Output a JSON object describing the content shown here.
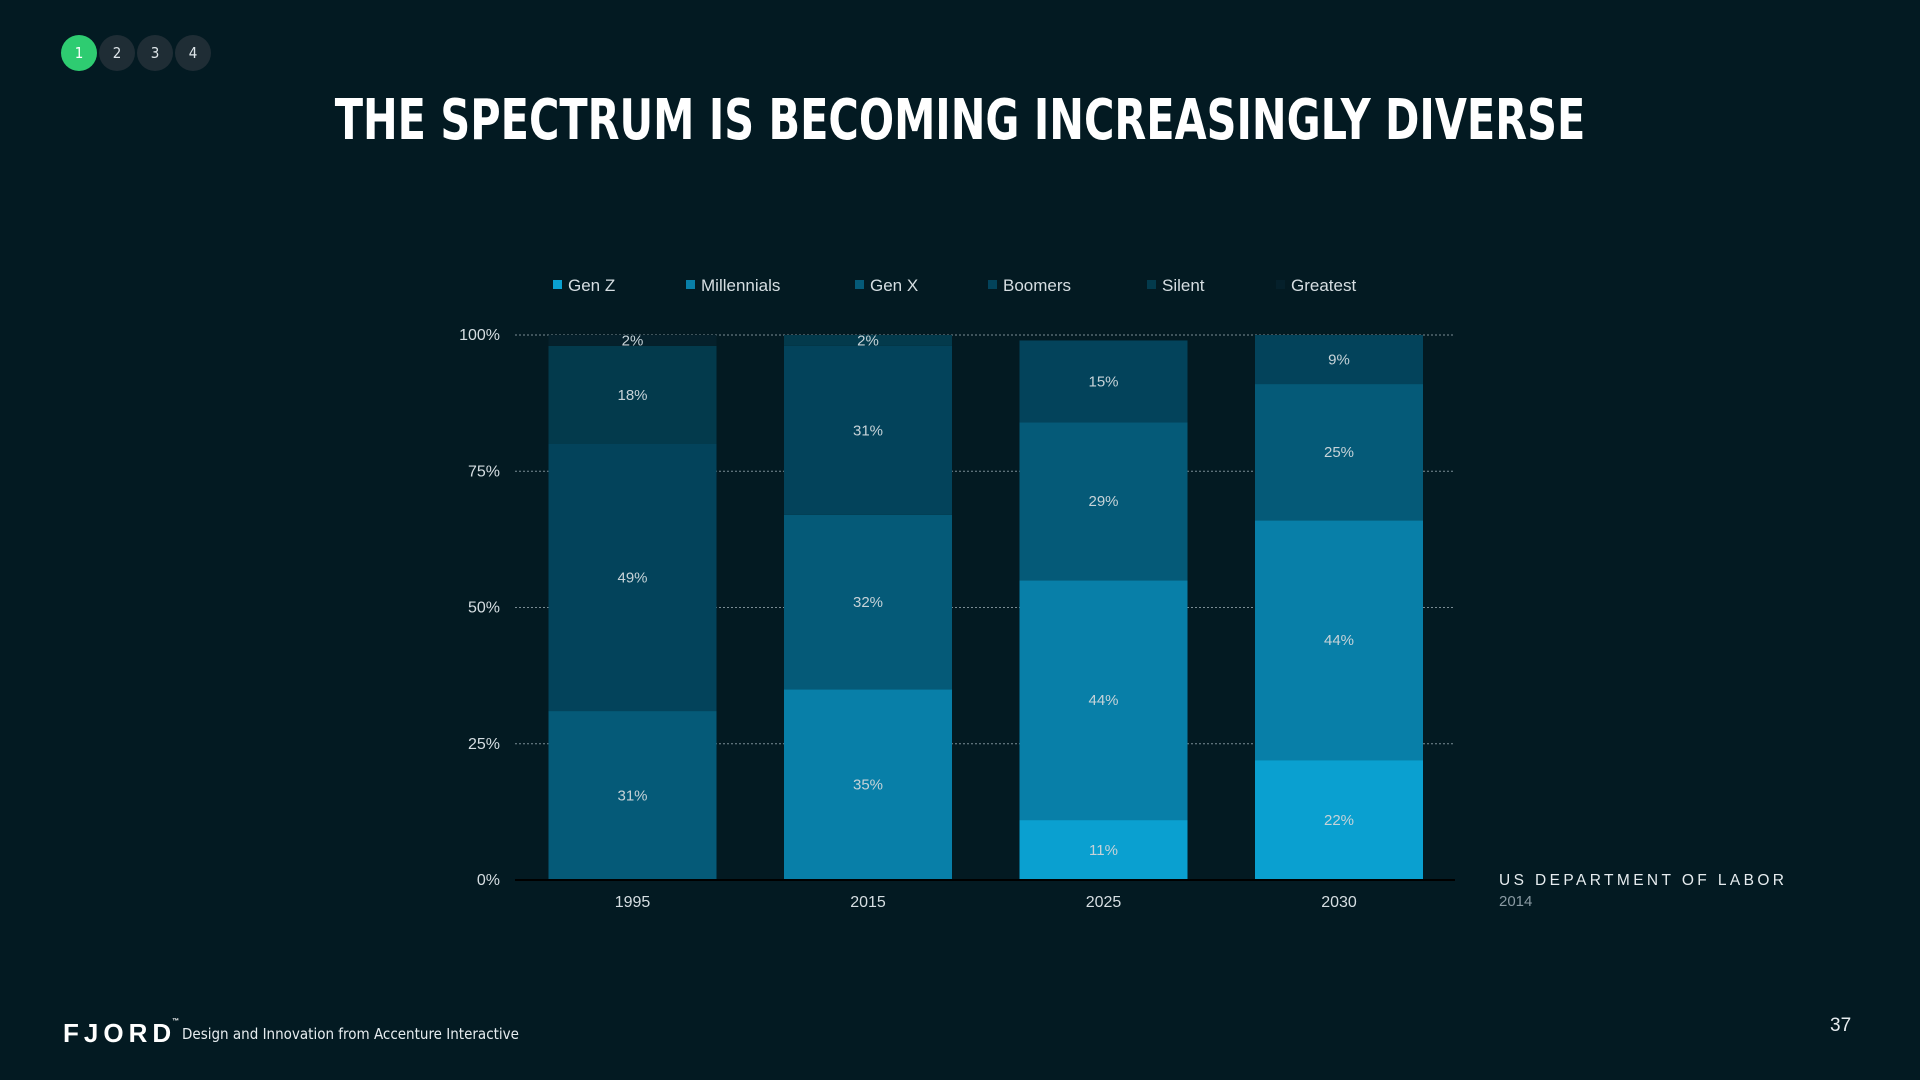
{
  "pagination": {
    "pages": [
      "1",
      "2",
      "3",
      "4"
    ],
    "active": "1"
  },
  "slide": {
    "title": "THE SPECTRUM IS BECOMING INCREASINGLY DIVERSE",
    "source": "US DEPARTMENT OF LABOR",
    "source_year": "2014",
    "page_number": "37"
  },
  "footer": {
    "brand": "FJORD",
    "brand_mark": "™",
    "tagline": "Design and Innovation from Accenture Interactive"
  },
  "chart_data": {
    "type": "bar",
    "stacked": true,
    "categories": [
      "1995",
      "2015",
      "2025",
      "2030"
    ],
    "ylim": [
      0,
      100
    ],
    "yticks": [
      "0%",
      "25%",
      "50%",
      "75%",
      "100%"
    ],
    "grid": true,
    "legend_position": "top",
    "series": [
      {
        "name": "Gen Z",
        "color": "#0aa0d0",
        "values": [
          0,
          0,
          11,
          22
        ],
        "labels": [
          "",
          "",
          "11%",
          "22%"
        ]
      },
      {
        "name": "Millennials",
        "color": "#087fa8",
        "values": [
          0,
          35,
          44,
          44
        ],
        "labels": [
          "",
          "35%",
          "44%",
          "44%"
        ]
      },
      {
        "name": "Gen X",
        "color": "#055a78",
        "values": [
          31,
          32,
          29,
          25
        ],
        "labels": [
          "31%",
          "32%",
          "29%",
          "25%"
        ]
      },
      {
        "name": "Boomers",
        "color": "#03435b",
        "values": [
          49,
          31,
          15,
          9
        ],
        "labels": [
          "49%",
          "31%",
          "15%",
          "9%"
        ]
      },
      {
        "name": "Silent",
        "color": "#033a4c",
        "values": [
          18,
          2,
          0,
          0
        ],
        "labels": [
          "18%",
          "2%",
          "",
          ""
        ]
      },
      {
        "name": "Greatest",
        "color": "#05202b",
        "values": [
          2,
          0,
          0,
          0
        ],
        "labels": [
          "2%",
          "",
          "",
          ""
        ]
      }
    ]
  }
}
